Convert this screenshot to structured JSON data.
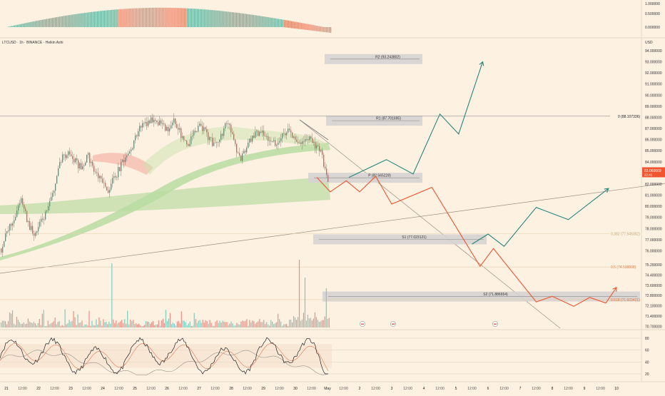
{
  "header": {
    "symbol_line": "LTCUSD · 1h · BINANCE · Heikin Ashi",
    "currency": "USD"
  },
  "colors": {
    "background": "#fdf1e2",
    "bull": "#26a69a",
    "bear": "#ef5350",
    "projection_green": "#26867a",
    "projection_red": "#f0552f",
    "price_badge": "#f0552f",
    "pivot_box": "#d5d3d2",
    "fib_text": "#e07b39",
    "macd_green": "#5fa792",
    "macd_red": "#ee7d5f"
  },
  "chart_data": [
    {
      "name": "price",
      "type": "candlestick",
      "ylim": [
        70.0,
        94.0
      ],
      "y_ticks": [
        "94.000000",
        "93.000000",
        "92.000000",
        "91.000000",
        "90.000000",
        "89.000000",
        "88.000000",
        "87.000000",
        "86.000000",
        "85.000000",
        "84.000000",
        "83.000000",
        "82.000000",
        "81.000000",
        "80.000000",
        "79.000000",
        "78.000000",
        "77.000000",
        "76.000000",
        "75.200000",
        "74.400000",
        "73.600000",
        "72.800000",
        "72.100000",
        "71.400000",
        "70.700000"
      ],
      "x_ticks": [
        "21",
        "12:00",
        "22",
        "12:00",
        "23",
        "12:00",
        "24",
        "12:00",
        "25",
        "12:00",
        "26",
        "12:00",
        "27",
        "12:00",
        "28",
        "12:00",
        "29",
        "12:00",
        "30",
        "12:00",
        "May",
        "12:00",
        "2",
        "12:00",
        "3",
        "12:00",
        "4",
        "12:00",
        "5",
        "12:00",
        "6",
        "12:00",
        "7",
        "12:00",
        "8",
        "12:00",
        "9",
        "12:00",
        "10"
      ],
      "current_price": "83.060669",
      "current_countdown": "22:41",
      "candle_path": [
        76.2,
        77.8,
        79.0,
        80.8,
        78.5,
        77.4,
        78.6,
        79.6,
        81.8,
        84.3,
        84.9,
        84.1,
        83.4,
        84.6,
        83.1,
        82.2,
        81.4,
        82.6,
        83.7,
        84.6,
        85.9,
        87.3,
        87.6,
        88.0,
        87.3,
        86.7,
        87.7,
        86.4,
        85.6,
        86.8,
        87.2,
        86.3,
        85.4,
        86.5,
        87.6,
        85.5,
        84.2,
        85.6,
        86.4,
        86.9,
        86.2,
        85.6,
        86.3,
        86.8,
        86.0,
        85.8,
        86.1,
        85.6,
        84.8,
        82.1
      ],
      "pivots": [
        {
          "label": "R2 (93.243802)",
          "value": 93.243802
        },
        {
          "label": "R1 (87.701695)",
          "value": 87.701695
        },
        {
          "label": "P (82.565228)",
          "value": 82.565228
        },
        {
          "label": "S1 (77.023121)",
          "value": 77.023121
        },
        {
          "label": "S2 (71.886654)",
          "value": 71.886654
        }
      ],
      "fib_levels": [
        {
          "label": "0 (88.107336)",
          "value": 88.107336
        },
        {
          "label": "0.382 (77.545352)",
          "value": 77.545352
        },
        {
          "label": "0.5 (74.538808)",
          "value": 74.538808
        },
        {
          "label": "0.618 (71.603421)",
          "value": 71.603421
        }
      ],
      "projections": [
        {
          "color": "green",
          "points": [
            [
              "May 1 16:00",
              82.6
            ],
            [
              "May 2 20:00",
              84.2
            ],
            [
              "May 3 16:00",
              82.9
            ],
            [
              "May 4 12:00",
              88.3
            ],
            [
              "May 5 02:00",
              86.5
            ],
            [
              "May 5 20:00",
              93.0
            ]
          ]
        },
        {
          "color": "red",
          "points": [
            [
              "Apr 30 16:00",
              82.6
            ],
            [
              "May 1 02:00",
              81.3
            ],
            [
              "May 1 14:00",
              82.3
            ],
            [
              "May 2 00:00",
              81.3
            ],
            [
              "May 2 12:00",
              82.7
            ],
            [
              "May 3 00:00",
              80.2
            ],
            [
              "May 4 06:00",
              81.7
            ],
            [
              "May 5 18:00",
              74.6
            ],
            [
              "May 6 04:00",
              76.2
            ],
            [
              "May 7 12:00",
              71.4
            ],
            [
              "May 8 00:00",
              71.9
            ],
            [
              "May 8 16:00",
              71.0
            ],
            [
              "May 9 04:00",
              71.8
            ],
            [
              "May 9 16:00",
              71.3
            ],
            [
              "May 10 00:00",
              72.7
            ]
          ]
        },
        {
          "color": "green",
          "points": [
            [
              "May 5 12:00",
              76.6
            ],
            [
              "May 6 00:00",
              77.5
            ],
            [
              "May 6 12:00",
              76.4
            ],
            [
              "May 7 12:00",
              79.9
            ],
            [
              "May 8 12:00",
              78.8
            ],
            [
              "May 9 18:00",
              81.6
            ]
          ]
        }
      ]
    },
    {
      "name": "oscillator",
      "type": "line",
      "ylim": [
        10,
        90
      ],
      "y_ticks": [
        "80",
        "60",
        "40",
        "20"
      ]
    },
    {
      "name": "macd_histogram",
      "type": "bar",
      "y_ticks": [
        "1.000000",
        "0.500000",
        "0.000000"
      ]
    }
  ]
}
